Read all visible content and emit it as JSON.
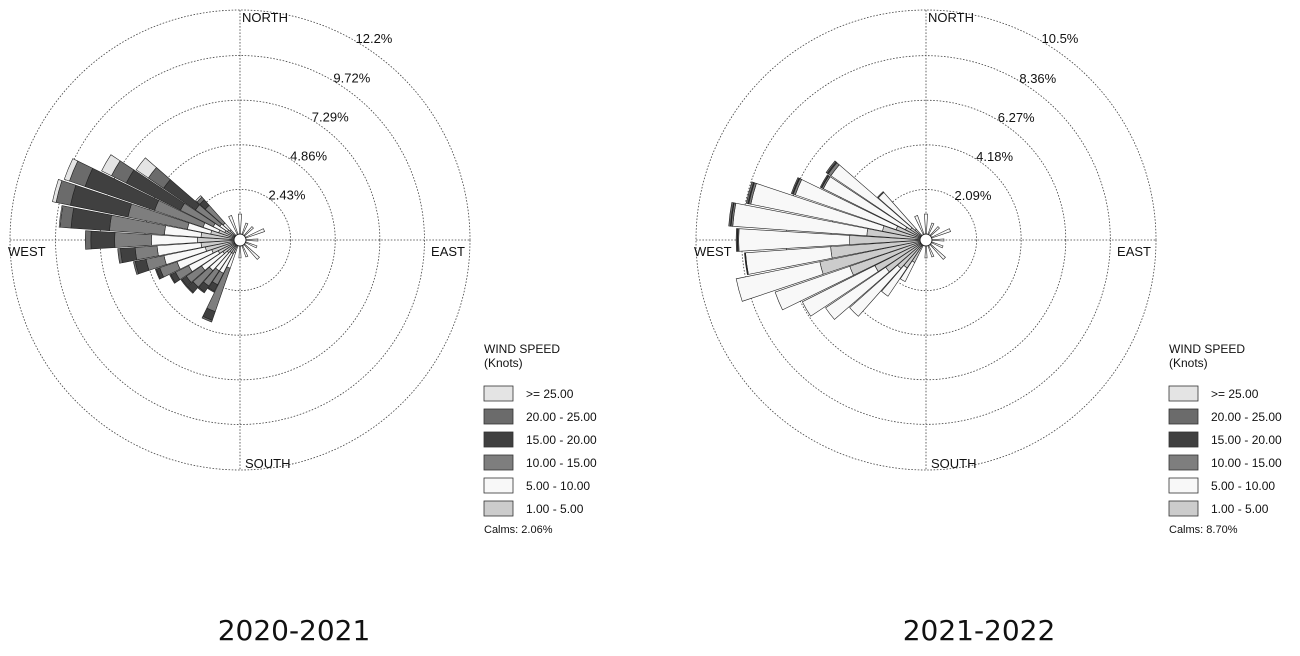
{
  "panels": [
    {
      "caption": "2020-2021",
      "chart_data": {
        "type": "wind-rose",
        "ring_labels": [
          "2.43%",
          "4.86%",
          "7.29%",
          "9.72%",
          "12.2%"
        ],
        "ring_values": [
          2.43,
          4.86,
          7.29,
          9.72,
          12.2
        ],
        "compass_labels": {
          "north": "NORTH",
          "east": "EAST",
          "south": "SOUTH",
          "west": "WEST"
        },
        "legend_title": [
          "WIND SPEED",
          "(Knots)"
        ],
        "legend": [
          ">= 25.00",
          "20.00 - 25.00",
          "15.00 - 20.00",
          "10.00 - 15.00",
          "5.00 - 10.00",
          "1.00 - 5.00"
        ],
        "calms": "Calms: 2.06%",
        "directions_deg": [
          202.5,
          210,
          217.5,
          225,
          232.5,
          240,
          247.5,
          255,
          262.5,
          270,
          277.5,
          285,
          292.5,
          300,
          307.5,
          315
        ],
        "series": [
          {
            "name": "1.00 - 5.00",
            "values": [
              0.4,
              0.5,
              0.5,
              0.6,
              0.8,
              1.0,
              1.3,
              1.6,
              1.8,
              2.0,
              1.8,
              1.3,
              0.9,
              0.6,
              0.5,
              0.4
            ]
          },
          {
            "name": "5.00 - 10.00",
            "values": [
              0.9,
              1.2,
              1.2,
              1.3,
              1.4,
              1.8,
              2.0,
              2.3,
              2.4,
              2.5,
              2.0,
              1.3,
              0.9,
              0.7,
              0.5,
              0.5
            ]
          },
          {
            "name": "10.00 - 15.00",
            "values": [
              2.5,
              0.7,
              1.0,
              1.2,
              1.0,
              0.8,
              1.0,
              1.0,
              1.2,
              2.0,
              3.0,
              3.3,
              2.8,
              2.0,
              1.6,
              1.3
            ]
          },
          {
            "name": "15.00 - 20.00",
            "values": [
              0.5,
              0.4,
              0.4,
              0.4,
              0.3,
              0.3,
              0.2,
              0.6,
              0.8,
              1.3,
              2.1,
              3.2,
              4.0,
              3.3,
              2.1,
              0.4
            ]
          },
          {
            "name": "20.00 - 25.00",
            "values": [
              0.1,
              0.05,
              0.05,
              0.05,
              0.05,
              0.05,
              0.05,
              0.1,
              0.15,
              0.3,
              0.6,
              0.8,
              0.9,
              0.9,
              1.0,
              0.2
            ]
          },
          {
            "name": ">= 25.00",
            "values": [
              0,
              0,
              0,
              0,
              0,
              0,
              0,
              0,
              0,
              0,
              0.05,
              0.2,
              0.3,
              0.6,
              0.8,
              0.1
            ]
          }
        ]
      }
    },
    {
      "caption": "2021-2022",
      "chart_data": {
        "type": "wind-rose",
        "ring_labels": [
          "2.09%",
          "4.18%",
          "6.27%",
          "8.36%",
          "10.5%"
        ],
        "ring_values": [
          2.09,
          4.18,
          6.27,
          8.36,
          10.5
        ],
        "compass_labels": {
          "north": "NORTH",
          "east": "EAST",
          "south": "SOUTH",
          "west": "WEST"
        },
        "legend_title": [
          "WIND SPEED",
          "(Knots)"
        ],
        "legend": [
          ">= 25.00",
          "20.00 - 25.00",
          "15.00 - 20.00",
          "10.00 - 15.00",
          "5.00 - 10.00",
          "1.00 - 5.00"
        ],
        "calms": "Calms: 8.70%",
        "directions_deg": [
          210,
          217.5,
          225,
          232.5,
          240,
          247.5,
          255,
          262.5,
          270,
          277.5,
          285,
          292.5,
          300,
          307.5,
          315
        ],
        "series": [
          {
            "name": "1.00 - 5.00",
            "values": [
              0.9,
              1.3,
              1.5,
              2.0,
              2.4,
              3.5,
              4.8,
              4.2,
              3.3,
              2.5,
              1.8,
              1.2,
              0.8,
              0.6,
              0.4
            ]
          },
          {
            "name": "5.00 - 10.00",
            "values": [
              1.0,
              1.6,
              3.0,
              3.4,
              3.8,
              3.7,
              4.0,
              4.0,
              5.2,
              6.3,
              6.3,
              5.0,
              4.3,
              4.5,
              2.3
            ]
          },
          {
            "name": "10.00 - 15.00",
            "values": [
              0,
              0,
              0,
              0,
              0,
              0,
              0,
              0.03,
              0.05,
              0.08,
              0.1,
              0.1,
              0.08,
              0.15,
              0.05
            ]
          },
          {
            "name": "15.00 - 20.00",
            "values": [
              0,
              0,
              0,
              0,
              0,
              0,
              0,
              0,
              0.02,
              0.03,
              0.04,
              0.04,
              0.03,
              0.05,
              0
            ]
          },
          {
            "name": "20.00 - 25.00",
            "values": [
              0,
              0,
              0,
              0,
              0,
              0,
              0,
              0.02,
              0.05,
              0.08,
              0.08,
              0.06,
              0.05,
              0.07,
              0
            ]
          },
          {
            "name": ">= 25.00",
            "values": [
              0,
              0,
              0,
              0,
              0,
              0,
              0,
              0,
              0,
              0,
              0,
              0,
              0,
              0,
              0
            ]
          }
        ]
      }
    }
  ],
  "colors": {
    ">= 25.00": "#e4e4e4",
    "20.00 - 25.00": "#6b6b6b",
    "15.00 - 20.00": "#404040",
    "10.00 - 15.00": "#7e7e7e",
    "5.00 - 10.00": "#f8f8f8",
    "1.00 - 5.00": "#cccccc"
  }
}
